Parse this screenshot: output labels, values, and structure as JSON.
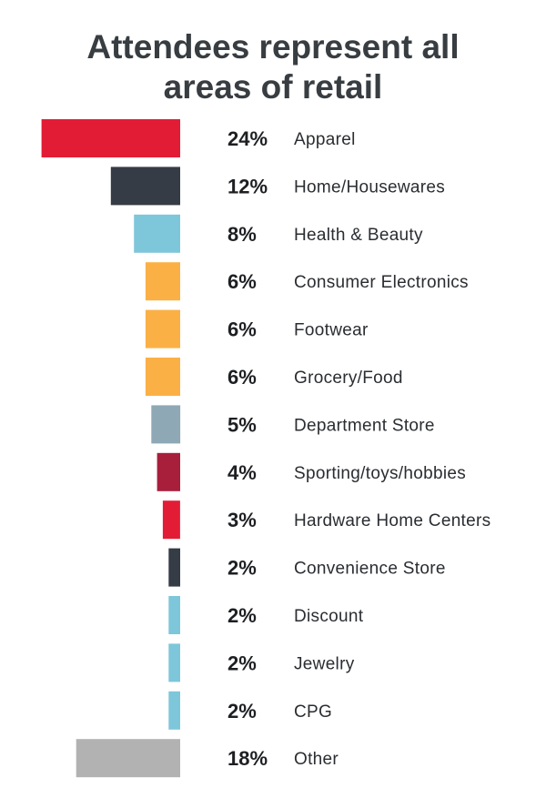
{
  "chart_data": {
    "type": "bar",
    "orientation": "horizontal",
    "title": "Attendees represent all areas of retail",
    "title_lines": [
      "Attendees represent all",
      "areas of retail"
    ],
    "xlabel": "",
    "ylabel": "",
    "grid": false,
    "categories": [
      "Apparel",
      "Home/Housewares",
      "Health & Beauty",
      "Consumer Electronics",
      "Footwear",
      "Grocery/Food",
      "Department Store",
      "Sporting/toys/hobbies",
      "Hardware Home Centers",
      "Convenience Store",
      "Discount",
      "Jewelry",
      "CPG",
      "Other"
    ],
    "values": [
      24,
      12,
      8,
      6,
      6,
      6,
      5,
      4,
      3,
      2,
      2,
      2,
      2,
      18
    ],
    "value_labels": [
      "24%",
      "12%",
      "8%",
      "6%",
      "6%",
      "6%",
      "5%",
      "4%",
      "3%",
      "2%",
      "2%",
      "2%",
      "2%",
      "18%"
    ],
    "colors": [
      "#e31c36",
      "#363c45",
      "#7ec6da",
      "#fbb046",
      "#fbb046",
      "#fbb046",
      "#8ea8b5",
      "#a81f3b",
      "#e31c36",
      "#363c45",
      "#7ec6da",
      "#7ec6da",
      "#7ec6da",
      "#b2b2b2"
    ]
  }
}
